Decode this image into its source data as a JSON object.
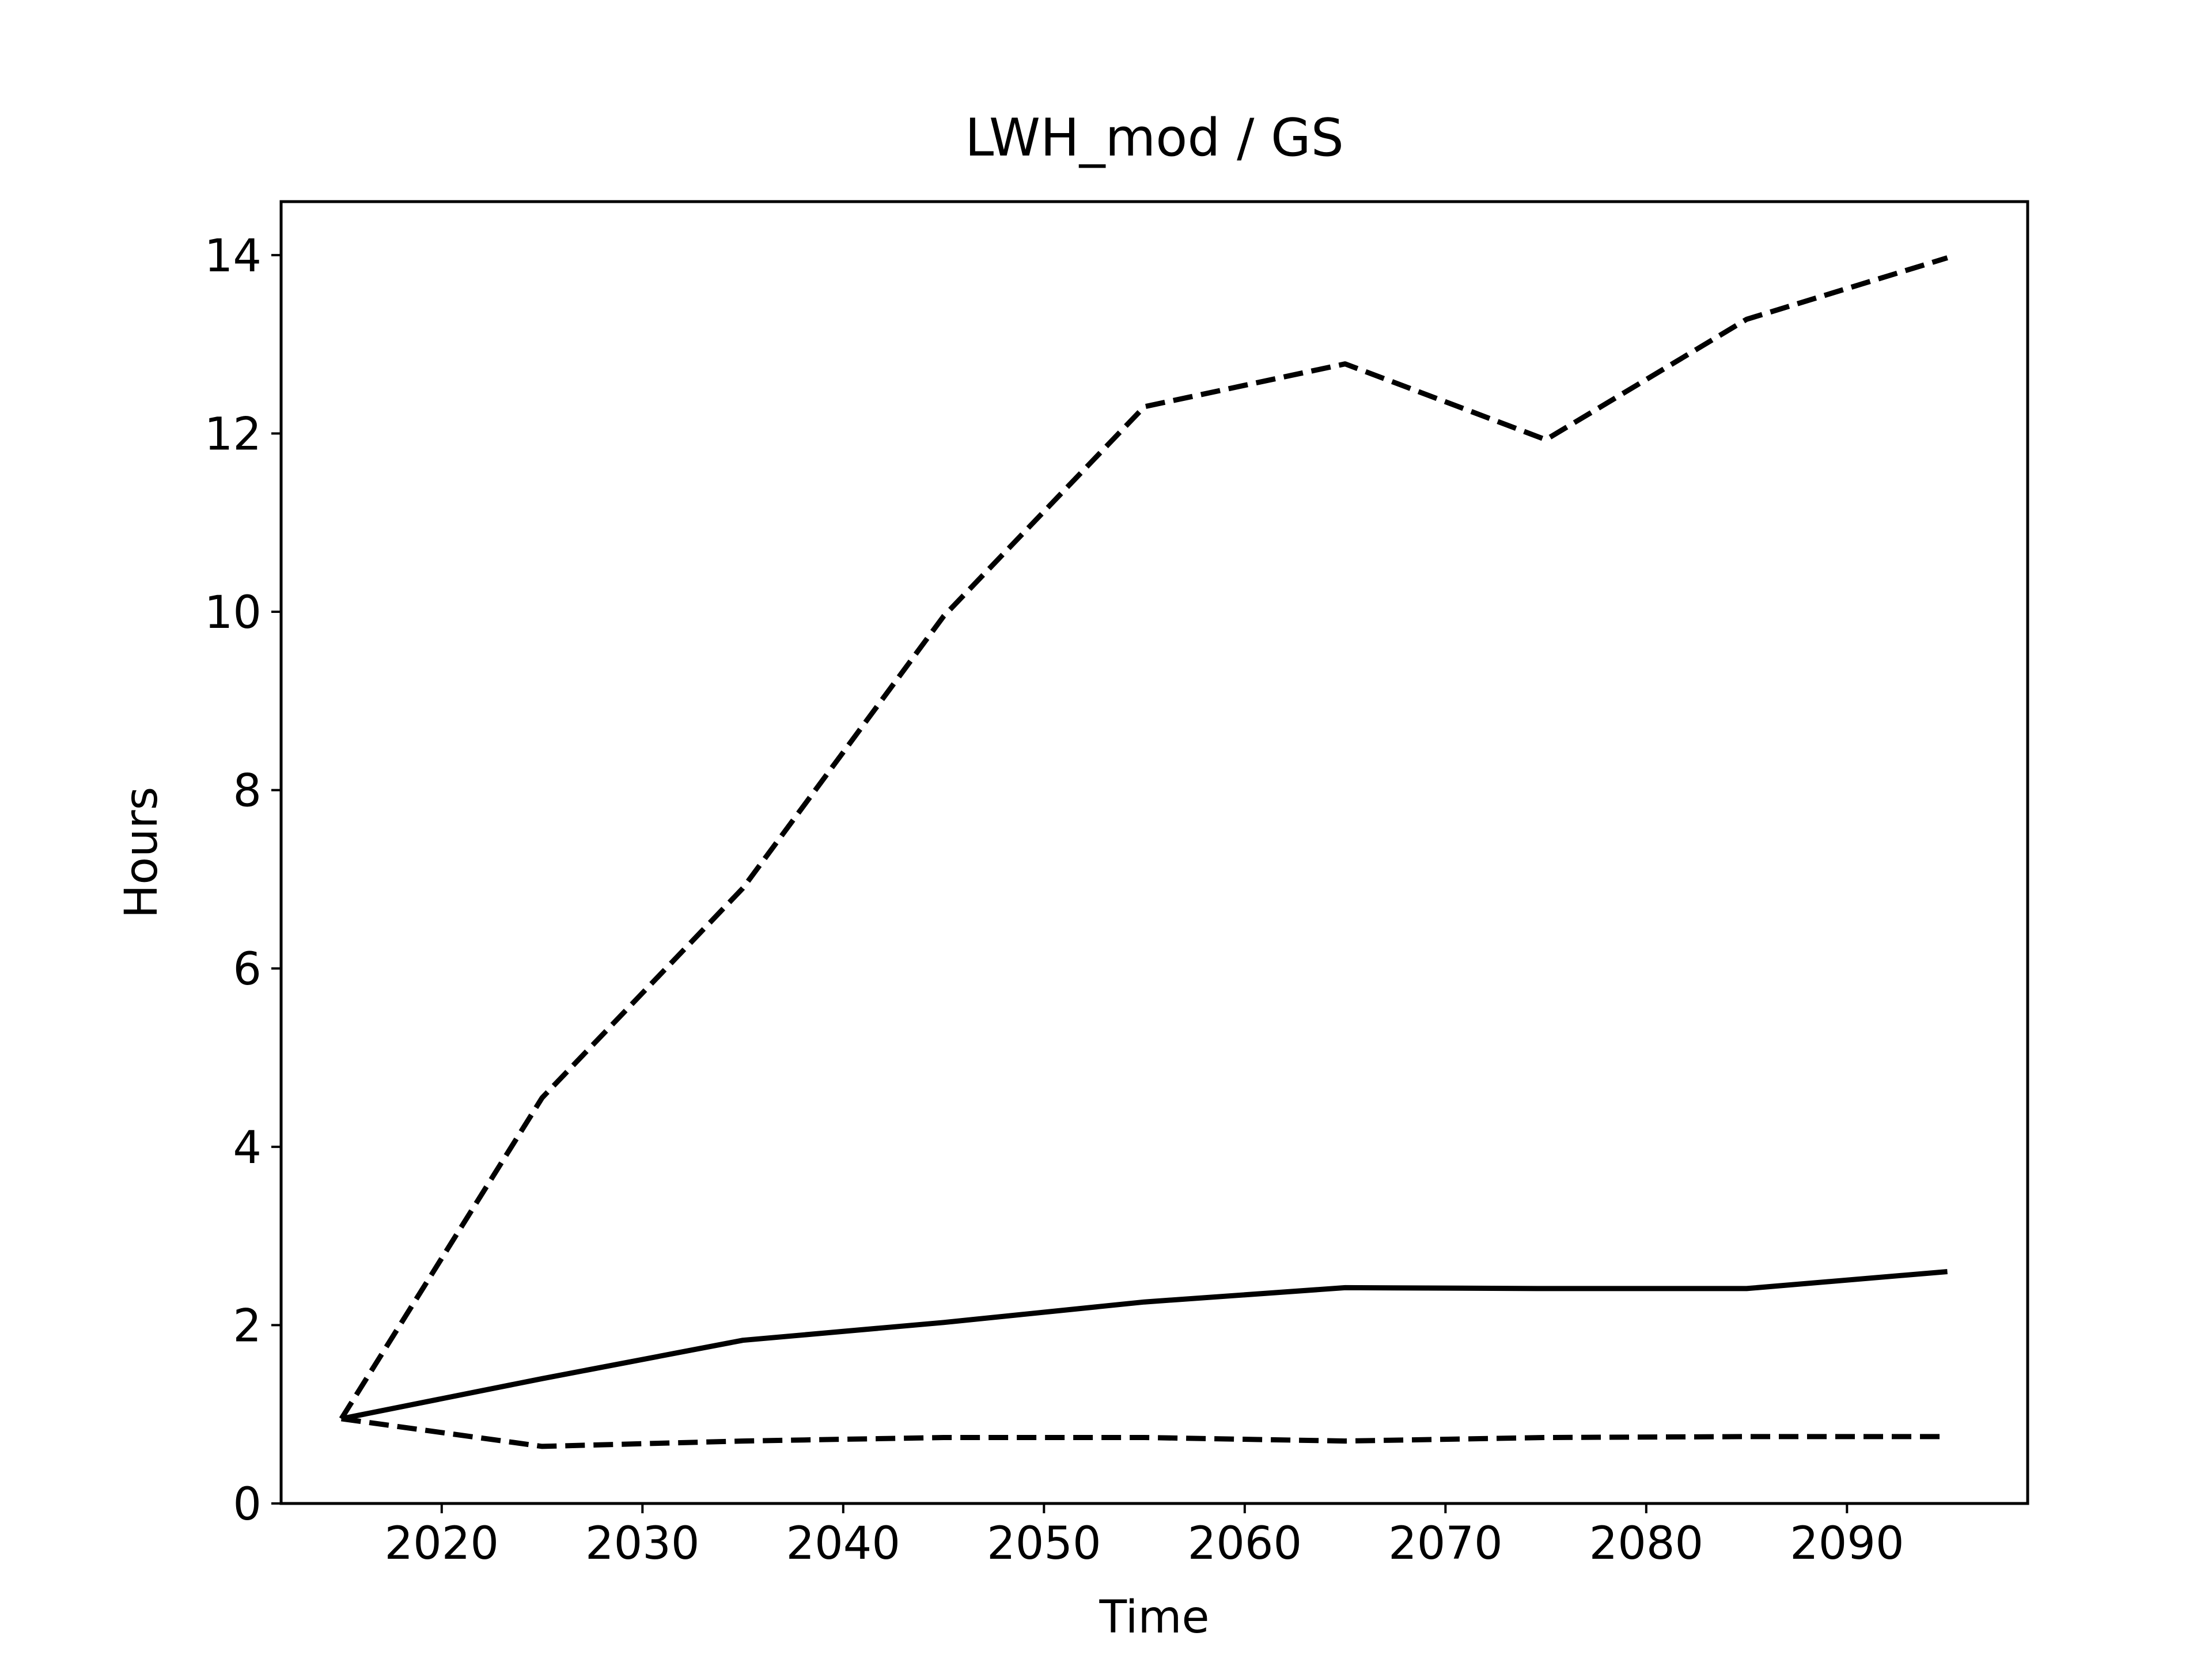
{
  "chart_data": {
    "type": "line",
    "title": "LWH_mod / GS",
    "xlabel": "Time",
    "ylabel": "Hours",
    "x": [
      2015,
      2025,
      2035,
      2045,
      2055,
      2065,
      2075,
      2085,
      2095
    ],
    "xlim": [
      2012,
      2099
    ],
    "ylim": [
      0,
      14.6
    ],
    "xticks": [
      2020,
      2030,
      2040,
      2050,
      2060,
      2070,
      2080,
      2090
    ],
    "yticks": [
      0,
      2,
      4,
      6,
      8,
      10,
      12,
      14
    ],
    "grid": false,
    "legend": "none",
    "series": [
      {
        "style": "dashed",
        "values": [
          0.95,
          4.55,
          6.9,
          9.95,
          12.3,
          12.78,
          11.93,
          13.28,
          13.97
        ]
      },
      {
        "style": "solid",
        "values": [
          0.95,
          1.4,
          1.83,
          2.03,
          2.26,
          2.42,
          2.41,
          2.41,
          2.6
        ]
      },
      {
        "style": "dashed",
        "values": [
          0.95,
          0.64,
          0.7,
          0.74,
          0.74,
          0.7,
          0.74,
          0.75,
          0.75
        ]
      }
    ],
    "colors": {
      "line": "#000000",
      "axes": "#000000",
      "background": "#ffffff"
    }
  }
}
